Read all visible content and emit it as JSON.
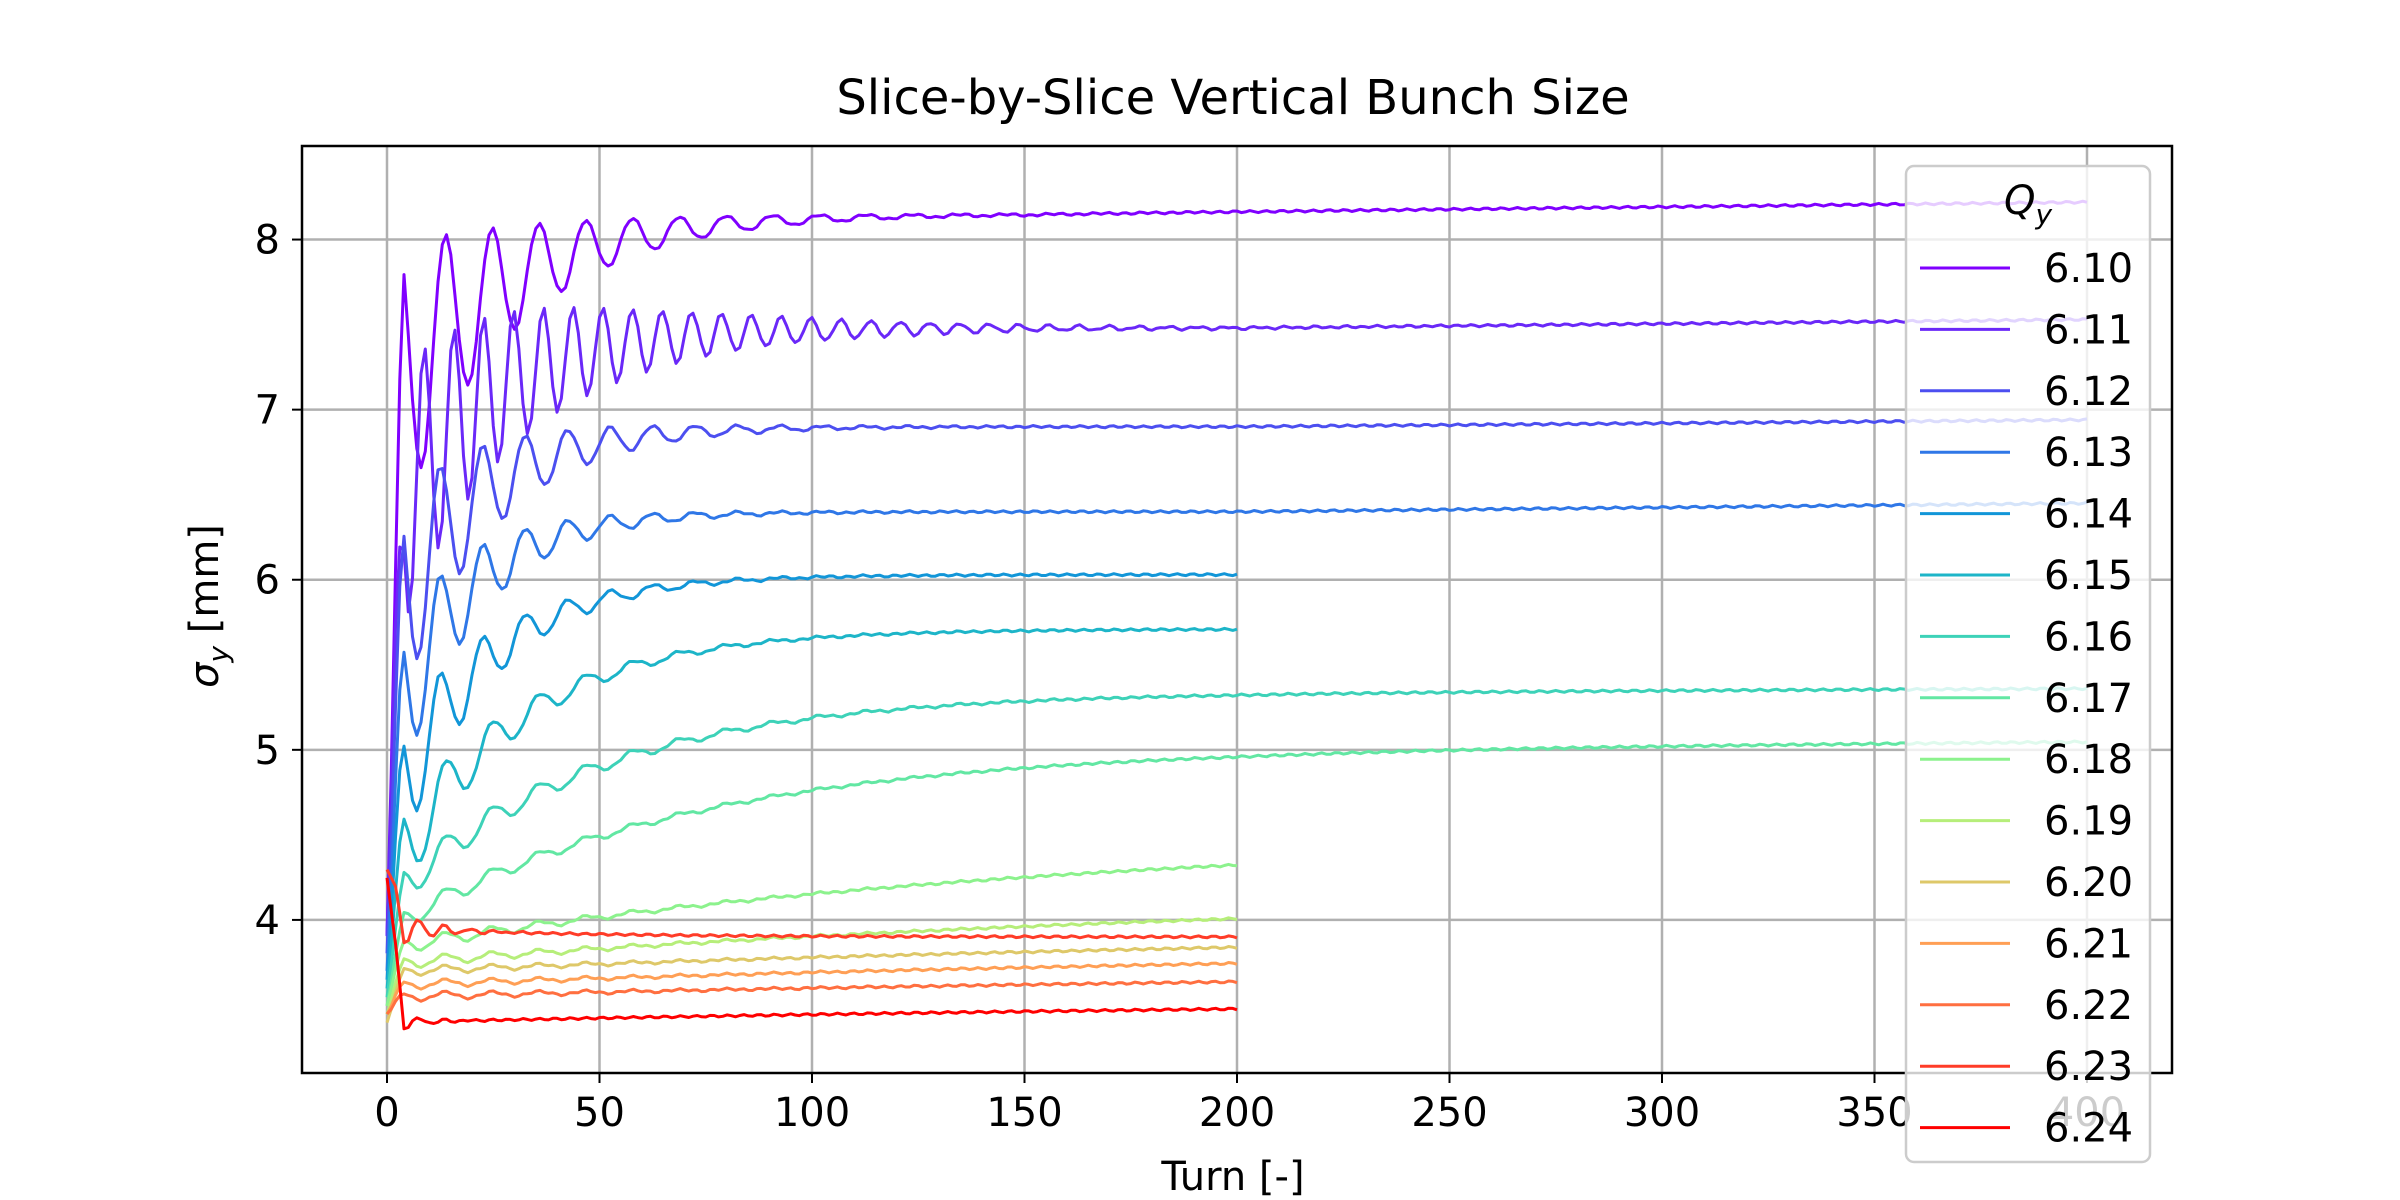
{
  "chart_data": {
    "type": "line",
    "title": "Slice-by-Slice Vertical Bunch Size",
    "xlabel": "Turn [-]",
    "ylabel_main": "σ",
    "ylabel_sub": "y",
    "ylabel_unit": " [mm]",
    "xlim": [
      -20,
      420
    ],
    "ylim": [
      3.1,
      8.55
    ],
    "xticks": [
      0,
      50,
      100,
      150,
      200,
      250,
      300,
      350,
      400
    ],
    "xtick_labels": [
      "0",
      "50",
      "100",
      "150",
      "200",
      "250",
      "300",
      "350",
      "400"
    ],
    "yticks": [
      4,
      5,
      6,
      7,
      8
    ],
    "ytick_labels": [
      "4",
      "5",
      "6",
      "7",
      "8"
    ],
    "grid": true,
    "legend": {
      "title_main": "Q",
      "title_sub": "y",
      "placement": "right"
    },
    "series": [
      {
        "name": "6.10",
        "color": "#8000ff",
        "x_end": 400,
        "start": 3.9,
        "peak": 7.2,
        "final": 8.15,
        "end": 8.22,
        "tau": 28,
        "osc_amp": 0.9,
        "osc_period": 11,
        "osc_decay": 28,
        "drift_from": 150
      },
      {
        "name": "6.11",
        "color": "#6a28f8",
        "x_end": 400,
        "start": 3.9,
        "peak": 6.5,
        "final": 7.48,
        "end": 7.53,
        "tau": 22,
        "osc_amp": 0.85,
        "osc_period": 7,
        "osc_decay": 40,
        "drift_from": 200
      },
      {
        "name": "6.12",
        "color": "#4c4ff0",
        "x_end": 400,
        "start": 3.8,
        "peak": 5.9,
        "final": 6.9,
        "end": 6.94,
        "tau": 20,
        "osc_amp": 0.7,
        "osc_period": 10,
        "osc_decay": 25,
        "drift_from": 200
      },
      {
        "name": "6.13",
        "color": "#2f77e7",
        "x_end": 400,
        "start": 3.7,
        "peak": 5.3,
        "final": 6.4,
        "end": 6.45,
        "tau": 18,
        "osc_amp": 0.55,
        "osc_period": 10,
        "osc_decay": 22,
        "drift_from": 200
      },
      {
        "name": "6.14",
        "color": "#1296d8",
        "x_end": 200,
        "start": 3.65,
        "peak": 4.8,
        "final": 6.03,
        "end": 6.03,
        "tau": 22,
        "osc_amp": 0.45,
        "osc_period": 10,
        "osc_decay": 22,
        "drift_from": 200
      },
      {
        "name": "6.15",
        "color": "#1db5c8",
        "x_end": 200,
        "start": 3.6,
        "peak": 4.4,
        "final": 5.71,
        "end": 5.71,
        "tau": 30,
        "osc_amp": 0.3,
        "osc_period": 11,
        "osc_decay": 25,
        "drift_from": 200
      },
      {
        "name": "6.16",
        "color": "#3dd2b8",
        "x_end": 400,
        "start": 3.55,
        "peak": 4.2,
        "final": 5.34,
        "end": 5.36,
        "tau": 48,
        "osc_amp": 0.12,
        "osc_period": 11,
        "osc_decay": 40,
        "drift_from": 200
      },
      {
        "name": "6.17",
        "color": "#62e7a3",
        "x_end": 400,
        "start": 3.5,
        "peak": 4.0,
        "final": 5.02,
        "end": 5.05,
        "tau": 70,
        "osc_amp": 0.07,
        "osc_period": 11,
        "osc_decay": 40,
        "drift_from": 200
      },
      {
        "name": "6.18",
        "color": "#8cf28d",
        "x_end": 200,
        "start": 3.5,
        "peak": 3.85,
        "final": 4.52,
        "end": 4.52,
        "tau": 160,
        "osc_amp": 0.05,
        "osc_period": 11,
        "osc_decay": 40,
        "drift_from": 200
      },
      {
        "name": "6.19",
        "color": "#b6ee7a",
        "x_end": 200,
        "start": 3.45,
        "peak": 3.75,
        "final": 4.2,
        "end": 4.2,
        "tau": 230,
        "osc_amp": 0.04,
        "osc_period": 11,
        "osc_decay": 40,
        "drift_from": 200
      },
      {
        "name": "6.20",
        "color": "#dec869",
        "x_end": 200,
        "start": 3.4,
        "peak": 3.7,
        "final": 3.99,
        "end": 3.99,
        "tau": 300,
        "osc_amp": 0.03,
        "osc_period": 11,
        "osc_decay": 40,
        "drift_from": 200
      },
      {
        "name": "6.21",
        "color": "#ff9f55",
        "x_end": 200,
        "start": 3.45,
        "peak": 3.62,
        "final": 3.88,
        "end": 3.88,
        "tau": 300,
        "osc_amp": 0.03,
        "osc_period": 11,
        "osc_decay": 40,
        "drift_from": 200
      },
      {
        "name": "6.22",
        "color": "#ff6f40",
        "x_end": 200,
        "start": 3.45,
        "peak": 3.55,
        "final": 3.73,
        "end": 3.73,
        "tau": 300,
        "osc_amp": 0.03,
        "osc_period": 11,
        "osc_decay": 40,
        "drift_from": 200
      },
      {
        "name": "6.23",
        "color": "#ff3c28",
        "x_end": 200,
        "start": 4.3,
        "peak": 3.95,
        "final": 3.9,
        "end": 3.9,
        "tau": 40,
        "osc_amp": 0.15,
        "osc_period": 6,
        "osc_decay": 8,
        "drift_from": 200
      },
      {
        "name": "6.24",
        "color": "#ff0000",
        "x_end": 200,
        "start": 4.25,
        "peak": 3.4,
        "final": 3.56,
        "end": 3.56,
        "tau": 300,
        "osc_amp": 0.08,
        "osc_period": 6,
        "osc_decay": 6,
        "drift_from": 200
      }
    ]
  }
}
